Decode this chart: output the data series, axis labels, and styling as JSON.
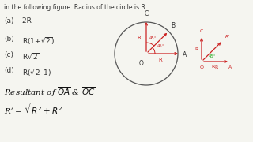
{
  "bg_color": "#f5f5f0",
  "top_text": "in the following figure. Radius of the circle is R.",
  "options": [
    [
      "(a)",
      "2R  -"
    ],
    [
      "(b)",
      "R(1+√2)"
    ],
    [
      "(c)",
      "R√2"
    ],
    [
      "(d)",
      "R(√2-1)"
    ]
  ],
  "circle_color": "#555555",
  "vector_color": "#cc2222",
  "angle_label_color": "#cc2222",
  "label_color": "#333333",
  "diagram2_color": "#cc2222",
  "diagram2_angle_color": "#22aa22"
}
